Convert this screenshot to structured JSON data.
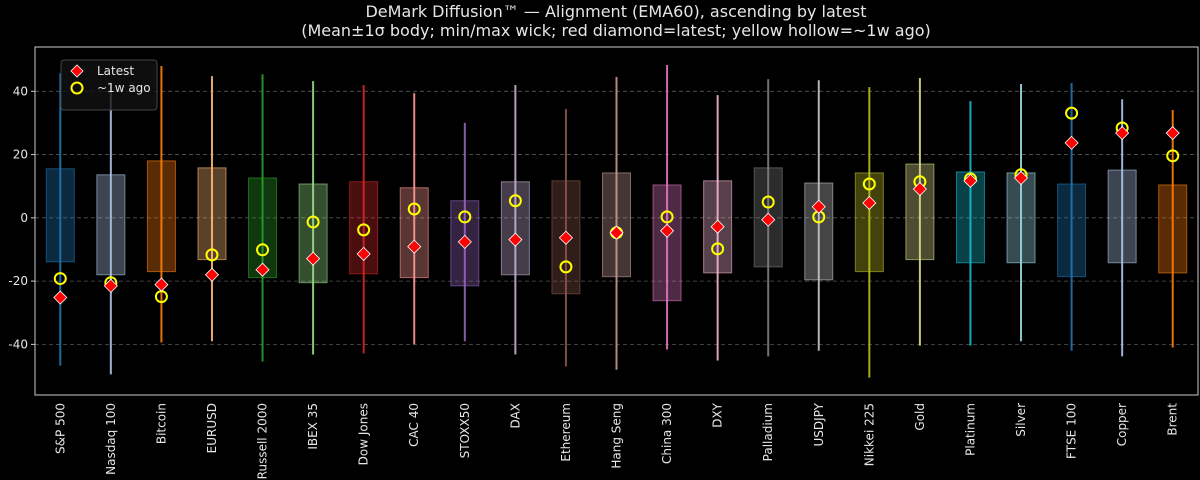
{
  "chart_data": {
    "type": "diffusion-box",
    "title": "DeMark Diffusion™ — Alignment (EMA60), ascending by latest",
    "subtitle": "(Mean±1σ body; min/max wick; red diamond=latest; yellow hollow=~1w ago)",
    "categories": [
      "S&P 500",
      "Nasdaq 100",
      "Bitcoin",
      "EURUSD",
      "Russell 2000",
      "IBEX 35",
      "Dow Jones",
      "CAC 40",
      "STOXX50",
      "DAX",
      "Ethereum",
      "Hang Seng",
      "China 300",
      "DXY",
      "Palladium",
      "USDJPY",
      "Nikkei 225",
      "Gold",
      "Platinum",
      "Silver",
      "FTSE 100",
      "Copper",
      "Brent"
    ],
    "colors": [
      "#1f77b4",
      "#aec7e8",
      "#ff7f0e",
      "#ffbb78",
      "#2ca02c",
      "#98df8a",
      "#d62728",
      "#ff9896",
      "#9467bd",
      "#c5b0d5",
      "#8c564b",
      "#c49c94",
      "#e377c2",
      "#f7b6d2",
      "#7f7f7f",
      "#c7c7c7",
      "#bcbd22",
      "#dbdb8d",
      "#17becf",
      "#9edae5",
      "#1f77b4",
      "#aec7e8",
      "#ff7f0e"
    ],
    "boxes": {
      "low": [
        -13.9,
        -18,
        -17,
        -13.2,
        -18.9,
        -20.5,
        -17.7,
        -18.9,
        -21.5,
        -18,
        -24,
        -18.6,
        -26.2,
        -17.4,
        -15.5,
        -19.6,
        -17,
        -13.2,
        -14.2,
        -14.2,
        -18.6,
        -14.2,
        -17.4
      ],
      "high": [
        15.5,
        13.6,
        18,
        15.8,
        12.6,
        10.7,
        11.4,
        9.5,
        5.4,
        11.4,
        11.7,
        14.2,
        10.4,
        11.7,
        15.8,
        11,
        14.2,
        17,
        14.5,
        14.2,
        10.7,
        15.1,
        10.4
      ],
      "min": [
        -46.7,
        -49.5,
        -39.4,
        -39,
        -45.4,
        -43.2,
        -42.9,
        -40,
        -39,
        -43.2,
        -47,
        -48,
        -41.6,
        -45.1,
        -43.8,
        -42,
        -50.5,
        -40.4,
        -40.4,
        -39,
        -42,
        -43.8,
        -41
      ],
      "max": [
        45.7,
        42.6,
        48,
        44.8,
        45.4,
        43.2,
        42,
        39.4,
        30,
        42,
        34.4,
        44.5,
        48.3,
        38.8,
        43.8,
        43.5,
        41.3,
        44.2,
        36.9,
        42.3,
        42.6,
        37.5,
        34.1
      ]
    },
    "series": [
      {
        "name": "Latest",
        "color": "#ff0000",
        "values": [
          -25.2,
          -21.5,
          -21.1,
          -18,
          -16.4,
          -12.9,
          -11.4,
          -9.1,
          -7.6,
          -6.9,
          -6.3,
          -4.7,
          -4.1,
          -2.8,
          -0.6,
          3.5,
          4.7,
          9.1,
          11.7,
          12.6,
          23.7,
          26.8,
          26.8
        ]
      },
      {
        "name": "~1w ago",
        "color": "#ffff00",
        "values": [
          -19.2,
          -20.5,
          -24.9,
          -11.7,
          -10.1,
          -1.3,
          -3.8,
          2.8,
          0.3,
          5.4,
          -15.5,
          -4.7,
          0.3,
          -9.8,
          5,
          0.3,
          10.7,
          11.4,
          12.3,
          13.6,
          33.1,
          28.4,
          19.6
        ]
      }
    ],
    "ylim": [
      -56,
      54
    ],
    "yticks": [
      -40,
      -20,
      0,
      20,
      40
    ],
    "grid": true,
    "legend": "upper left"
  }
}
